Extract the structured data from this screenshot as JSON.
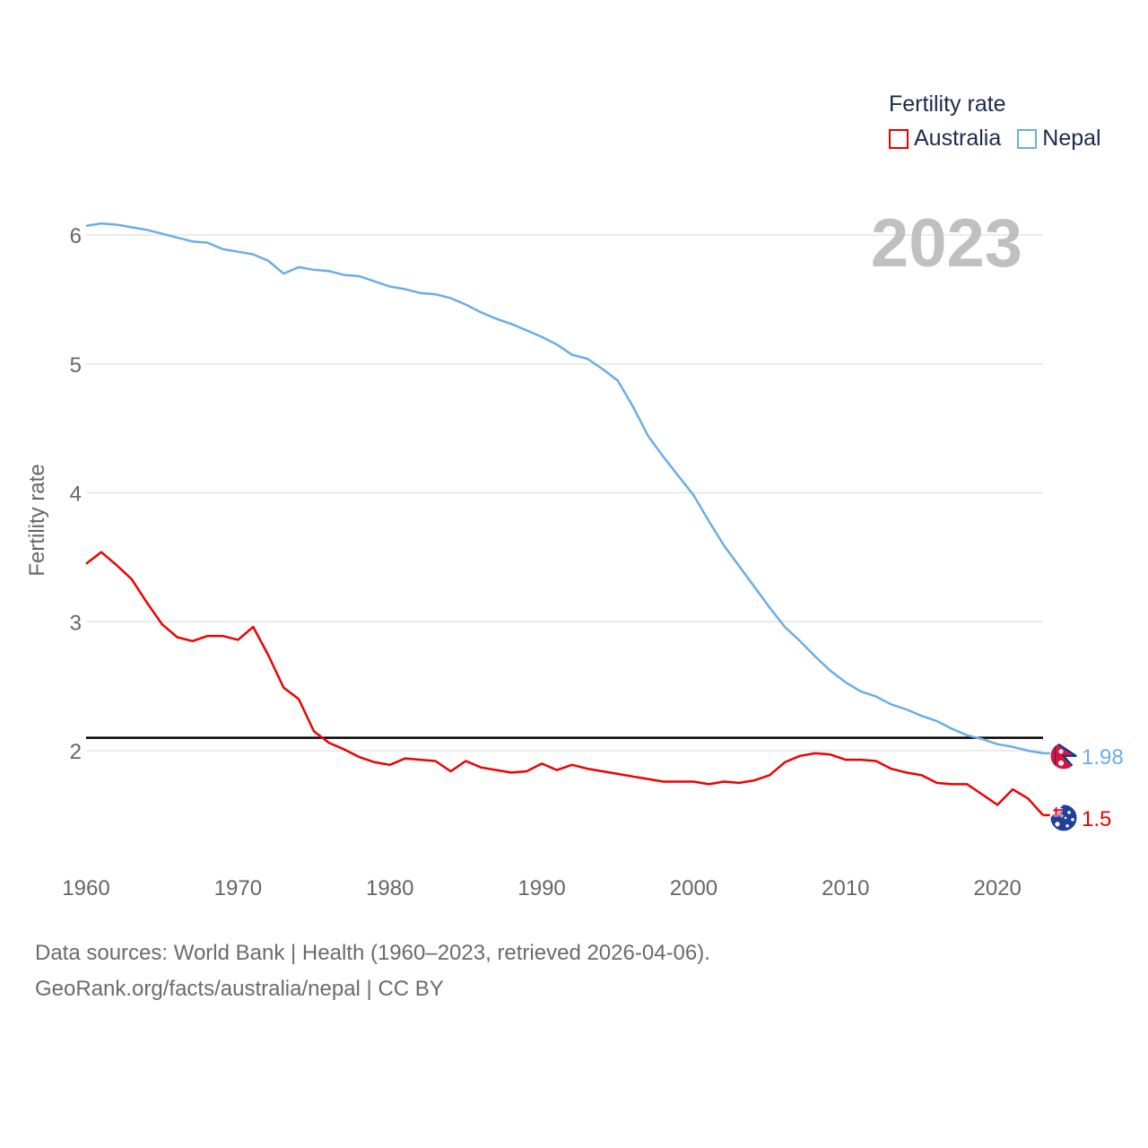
{
  "chart_data": {
    "type": "line",
    "legend_title": "Fertility rate",
    "legend_position": "top-right",
    "year_label": "2023",
    "ylabel": "Fertility rate",
    "xlabel": "",
    "xlim": [
      1960,
      2023
    ],
    "ylim": [
      1.2,
      6.3
    ],
    "x_ticks": [
      1960,
      1970,
      1980,
      1990,
      2000,
      2010,
      2020
    ],
    "y_ticks": [
      2,
      3,
      4,
      5,
      6
    ],
    "reference_line": 2.1,
    "x": [
      1960,
      1961,
      1962,
      1963,
      1964,
      1965,
      1966,
      1967,
      1968,
      1969,
      1970,
      1971,
      1972,
      1973,
      1974,
      1975,
      1976,
      1977,
      1978,
      1979,
      1980,
      1981,
      1982,
      1983,
      1984,
      1985,
      1986,
      1987,
      1988,
      1989,
      1990,
      1991,
      1992,
      1993,
      1994,
      1995,
      1996,
      1997,
      1998,
      1999,
      2000,
      2001,
      2002,
      2003,
      2004,
      2005,
      2006,
      2007,
      2008,
      2009,
      2010,
      2011,
      2012,
      2013,
      2014,
      2015,
      2016,
      2017,
      2018,
      2019,
      2020,
      2021,
      2022,
      2023
    ],
    "series": [
      {
        "name": "Australia",
        "color": "#ee0000",
        "end_label": "1.5",
        "flag_icon": "australia-flag-icon",
        "values": [
          3.45,
          3.54,
          3.44,
          3.33,
          3.15,
          2.98,
          2.88,
          2.85,
          2.89,
          2.89,
          2.86,
          2.96,
          2.74,
          2.49,
          2.4,
          2.15,
          2.06,
          2.01,
          1.95,
          1.91,
          1.89,
          1.94,
          1.93,
          1.92,
          1.84,
          1.92,
          1.87,
          1.85,
          1.83,
          1.84,
          1.9,
          1.85,
          1.89,
          1.86,
          1.84,
          1.82,
          1.8,
          1.78,
          1.76,
          1.76,
          1.76,
          1.74,
          1.76,
          1.75,
          1.77,
          1.81,
          1.91,
          1.96,
          1.98,
          1.97,
          1.93,
          1.93,
          1.92,
          1.86,
          1.83,
          1.81,
          1.75,
          1.74,
          1.74,
          1.66,
          1.58,
          1.7,
          1.63,
          1.5
        ]
      },
      {
        "name": "Nepal",
        "color": "#6aaee8",
        "end_label": "1.98",
        "flag_icon": "nepal-flag-icon",
        "values": [
          6.07,
          6.09,
          6.08,
          6.06,
          6.04,
          6.01,
          5.98,
          5.95,
          5.94,
          5.89,
          5.87,
          5.85,
          5.8,
          5.7,
          5.75,
          5.73,
          5.72,
          5.69,
          5.68,
          5.64,
          5.6,
          5.58,
          5.55,
          5.54,
          5.51,
          5.46,
          5.4,
          5.35,
          5.31,
          5.26,
          5.21,
          5.15,
          5.07,
          5.04,
          4.96,
          4.87,
          4.67,
          4.44,
          4.28,
          4.13,
          3.98,
          3.78,
          3.59,
          3.43,
          3.27,
          3.11,
          2.96,
          2.85,
          2.73,
          2.62,
          2.53,
          2.46,
          2.42,
          2.36,
          2.32,
          2.27,
          2.23,
          2.17,
          2.12,
          2.09,
          2.05,
          2.03,
          2.0,
          1.98
        ]
      }
    ]
  },
  "footer": {
    "line1": "Data sources: World Bank | Health (1960–2023, retrieved 2026-04-06).",
    "line2": "GeoRank.org/facts/australia/nepal | CC BY"
  }
}
